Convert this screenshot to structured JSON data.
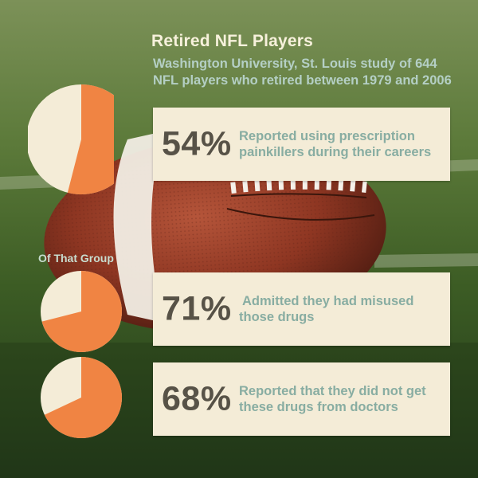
{
  "title": "Retired NFL Players",
  "subtitle": [
    "Washington University, St. Louis study of 644",
    "NFL players who retired between 1979 and 2006"
  ],
  "group_label": "Of That Group",
  "colors": {
    "accent": "#f08443",
    "pie_base": "#f4ecd7",
    "panel": "#f4ecd7",
    "percent_text": "#575247",
    "desc_text": "#88ada2",
    "title_text": "#f7f1dc"
  },
  "chart_data": {
    "type": "pie",
    "items": [
      {
        "percent_label": "54%",
        "value": 54,
        "description": [
          "Reported using prescription",
          "painkillers during their careers"
        ]
      },
      {
        "percent_label": "71%",
        "value": 71,
        "description": [
          " Admitted they had misused",
          "those drugs"
        ]
      },
      {
        "percent_label": "68%",
        "value": 68,
        "description": [
          "Reported that they did not get",
          "these drugs from doctors"
        ]
      }
    ]
  }
}
